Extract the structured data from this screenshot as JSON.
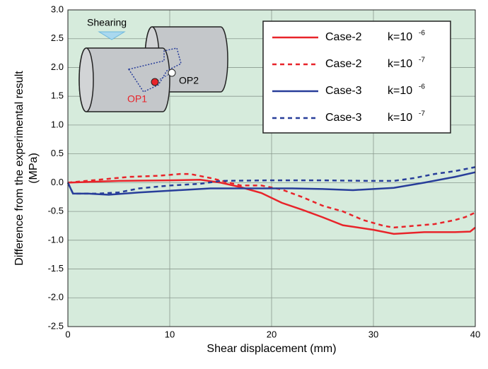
{
  "chart_data": {
    "type": "line",
    "xlabel": "Shear displacement (mm)",
    "ylabel": [
      "Difference from the experimental result",
      "(MPa)"
    ],
    "xlim": [
      0,
      40
    ],
    "ylim": [
      -2.5,
      3.0
    ],
    "xticks": [
      0,
      10,
      20,
      30,
      40
    ],
    "yticks": [
      {
        "value": 3.0,
        "label": "3.0"
      },
      {
        "value": 2.5,
        "label": "2.5"
      },
      {
        "value": 2.0,
        "label": "2.0"
      },
      {
        "value": 1.5,
        "label": "1.5"
      },
      {
        "value": 1.0,
        "label": "1.0"
      },
      {
        "value": 0.5,
        "label": "0.5"
      },
      {
        "value": 0,
        "label": "0.0"
      },
      {
        "value": -0.5,
        "label": "-0.5"
      },
      {
        "value": -1.0,
        "label": "-1.0"
      },
      {
        "value": -1.5,
        "label": "-1.5"
      },
      {
        "value": -2.0,
        "label": "-2.0"
      },
      {
        "value": -2.5,
        "label": "-2.5"
      }
    ],
    "grid": true,
    "background": "#d6ebdc",
    "legend": "upper right",
    "annotations": {
      "shearing": "Shearing",
      "op1": "OP1",
      "op2": "OP2"
    },
    "series": [
      {
        "name": "Case-2",
        "k_base": "k=10",
        "k_exp": "-6",
        "color": "#e8242a",
        "dash": false,
        "x": [
          0,
          5,
          10,
          13,
          15,
          17,
          19,
          21,
          23,
          25,
          27,
          30,
          32,
          35,
          38,
          39.5,
          40
        ],
        "values": [
          0,
          0.03,
          0.04,
          0.05,
          0.0,
          -0.08,
          -0.18,
          -0.35,
          -0.47,
          -0.6,
          -0.74,
          -0.82,
          -0.89,
          -0.86,
          -0.86,
          -0.85,
          -0.78
        ]
      },
      {
        "name": "Case-2",
        "k_base": "k=10",
        "k_exp": "-7",
        "color": "#e8242a",
        "dash": true,
        "x": [
          0,
          3,
          6,
          9,
          11,
          12,
          14,
          17,
          19,
          21,
          23,
          25,
          27,
          29,
          31,
          32,
          34,
          36,
          38,
          39,
          40
        ],
        "values": [
          0,
          0.05,
          0.1,
          0.12,
          0.15,
          0.15,
          0.08,
          -0.05,
          -0.05,
          -0.12,
          -0.25,
          -0.4,
          -0.5,
          -0.65,
          -0.75,
          -0.78,
          -0.75,
          -0.72,
          -0.65,
          -0.6,
          -0.52
        ]
      },
      {
        "name": "Case-3",
        "k_base": "k=10",
        "k_exp": "-6",
        "color": "#283e9a",
        "dash": false,
        "x": [
          0,
          0.5,
          2,
          4,
          7,
          10,
          14,
          18,
          22,
          25,
          28,
          32,
          35,
          38,
          40
        ],
        "values": [
          0,
          -0.19,
          -0.19,
          -0.21,
          -0.17,
          -0.14,
          -0.1,
          -0.1,
          -0.1,
          -0.11,
          -0.13,
          -0.09,
          0.0,
          0.1,
          0.18
        ]
      },
      {
        "name": "Case-3",
        "k_base": "k=10",
        "k_exp": "-7",
        "color": "#283e9a",
        "dash": true,
        "x": [
          0,
          0.5,
          3,
          5,
          7,
          10,
          13,
          15,
          20,
          25,
          30,
          32,
          34,
          36,
          38,
          40
        ],
        "values": [
          0,
          -0.19,
          -0.19,
          -0.17,
          -0.1,
          -0.05,
          -0.02,
          0.03,
          0.04,
          0.04,
          0.03,
          0.03,
          0.08,
          0.15,
          0.2,
          0.27
        ]
      }
    ]
  }
}
